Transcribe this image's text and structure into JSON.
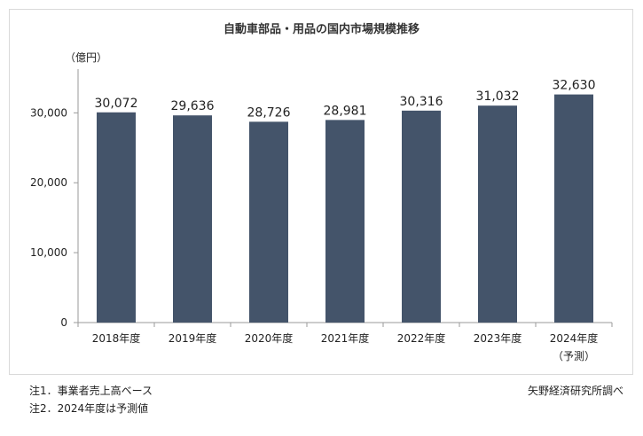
{
  "chart_data": {
    "type": "bar",
    "title": "自動車部品・用品の国内市場規模推移",
    "unit_label": "（億円）",
    "categories": [
      "2018年度",
      "2019年度",
      "2020年度",
      "2021年度",
      "2022年度",
      "2023年度",
      "2024年度"
    ],
    "category_sublabels": [
      "",
      "",
      "",
      "",
      "",
      "",
      "（予測）"
    ],
    "values": [
      30072,
      29636,
      28726,
      28981,
      30316,
      31032,
      32630
    ],
    "value_labels": [
      "30,072",
      "29,636",
      "28,726",
      "28,981",
      "30,316",
      "31,032",
      "32,630"
    ],
    "ylim": [
      0,
      36000
    ],
    "yticks": [
      0,
      10000,
      20000,
      30000
    ],
    "ytick_labels": [
      "0",
      "10,000",
      "20,000",
      "30,000"
    ],
    "bar_color": "#44546a",
    "grid": false,
    "legend": "none"
  },
  "notes": [
    "注1．事業者売上高ベース",
    "注2．2024年度は予測値"
  ],
  "source": "矢野経済研究所調べ"
}
